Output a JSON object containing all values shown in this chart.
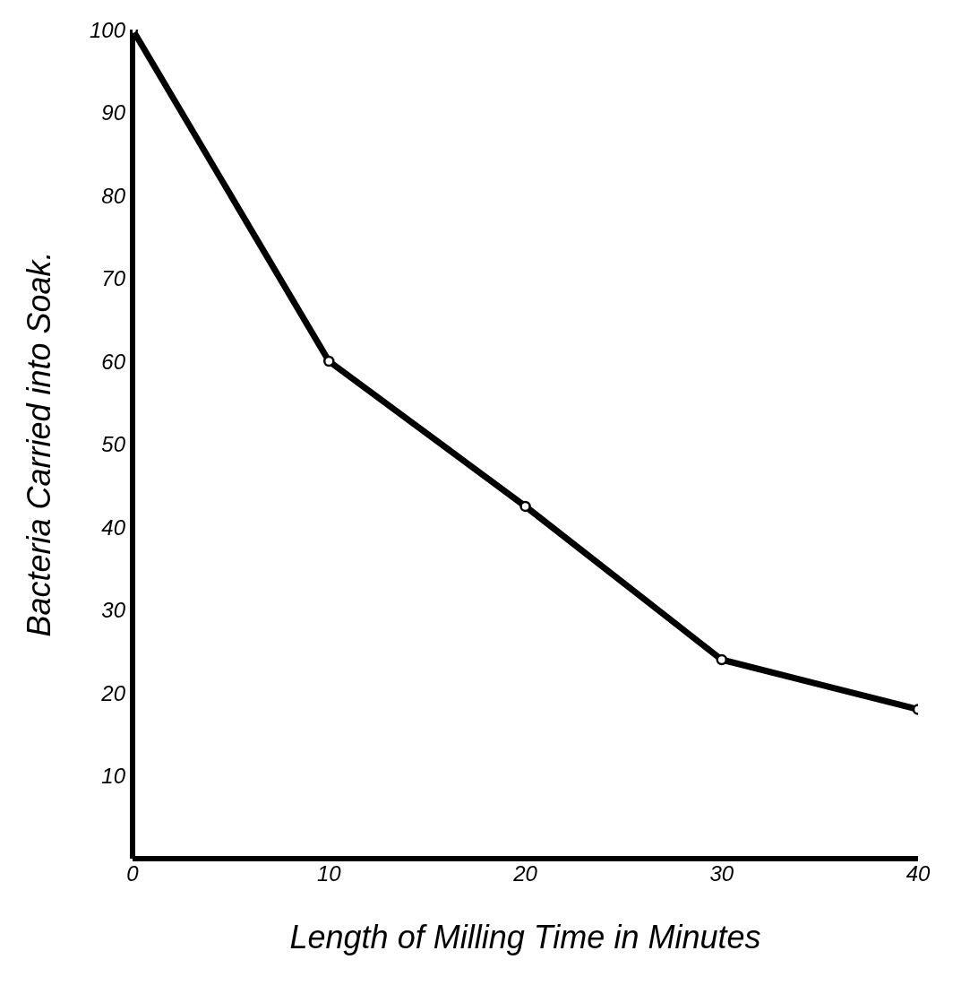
{
  "chart_data": {
    "type": "line",
    "xlabel": "Length of Milling Time in Minutes",
    "ylabel": "Bacteria Carried into Soak.",
    "x": [
      0,
      10,
      20,
      30,
      40
    ],
    "series": [
      {
        "color": "#000000",
        "values": [
          100,
          60,
          42.5,
          24,
          18
        ]
      }
    ],
    "xlim": [
      0,
      40
    ],
    "xticks": [
      0,
      10,
      20,
      30,
      40
    ],
    "ylim": [
      0,
      100
    ],
    "yticks": [
      10,
      20,
      30,
      40,
      50,
      60,
      70,
      80,
      90,
      100
    ],
    "grid": false,
    "legend": false,
    "marker": "circle",
    "line_style": "solid"
  }
}
